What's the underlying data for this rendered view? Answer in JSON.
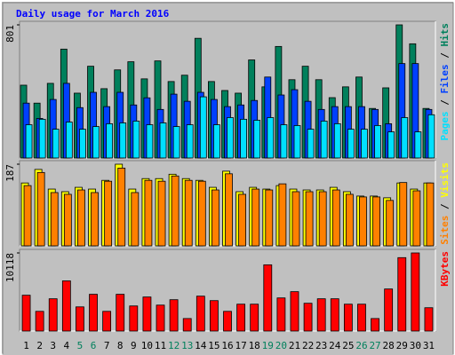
{
  "chart_data": {
    "type": "bar",
    "title": "Daily usage for March 2016",
    "legend_separator": "/",
    "categories": [
      "1",
      "2",
      "3",
      "4",
      "5",
      "6",
      "7",
      "8",
      "9",
      "10",
      "11",
      "12",
      "13",
      "14",
      "15",
      "16",
      "17",
      "18",
      "19",
      "20",
      "21",
      "22",
      "23",
      "24",
      "25",
      "26",
      "27",
      "28",
      "29",
      "30",
      "31"
    ],
    "category_colors": [
      "#000000",
      "#000000",
      "#000000",
      "#000000",
      "#00805c",
      "#00805c",
      "#000000",
      "#000000",
      "#000000",
      "#000000",
      "#000000",
      "#00805c",
      "#00805c",
      "#000000",
      "#000000",
      "#000000",
      "#000000",
      "#000000",
      "#00805c",
      "#00805c",
      "#000000",
      "#000000",
      "#000000",
      "#000000",
      "#000000",
      "#00805c",
      "#00805c",
      "#000000",
      "#000000",
      "#000000",
      "#000000"
    ],
    "panels": [
      {
        "ylim": [
          0,
          801
        ],
        "yticks": [
          801
        ],
        "series": [
          {
            "name": "Hits",
            "color": "#00805c",
            "values": [
              438,
              330,
              449,
              655,
              390,
              552,
              417,
              530,
              579,
              476,
              584,
              460,
              498,
              720,
              460,
              406,
              390,
              590,
              428,
              671,
              471,
              552,
              471,
              363,
              428,
              487,
              298,
              422,
              801,
              687,
              298
            ]
          },
          {
            "name": "Files",
            "color": "#0040ff",
            "values": [
              330,
              238,
              352,
              449,
              303,
              395,
              309,
              395,
              319,
              362,
              292,
              384,
              341,
              395,
              352,
              309,
              319,
              346,
              487,
              379,
              411,
              341,
              292,
              309,
              309,
              309,
              292,
              206,
              568,
              568,
              292
            ]
          },
          {
            "name": "Pages",
            "color": "#00e0ff",
            "values": [
              200,
              233,
              173,
              216,
              173,
              189,
              206,
              211,
              222,
              200,
              211,
              189,
              200,
              368,
              200,
              243,
              233,
              227,
              243,
              200,
              195,
              173,
              222,
              206,
              173,
              173,
              195,
              157,
              243,
              157,
              260
            ]
          }
        ]
      },
      {
        "ylim": [
          0,
          187
        ],
        "yticks": [
          187
        ],
        "series": [
          {
            "name": "Visits",
            "color": "#ffff00",
            "values": [
              144,
              175,
              130,
              124,
              134,
              130,
              150,
              187,
              130,
              154,
              154,
              164,
              154,
              150,
              134,
              171,
              124,
              134,
              130,
              138,
              130,
              128,
              128,
              134,
              124,
              114,
              114,
              110,
              144,
              130,
              144
            ]
          },
          {
            "name": "Sites",
            "color": "#ff8000",
            "values": [
              138,
              168,
              122,
              118,
              128,
              122,
              148,
              178,
              122,
              150,
              148,
              160,
              150,
              148,
              128,
              165,
              118,
              130,
              128,
              142,
              124,
              124,
              124,
              128,
              118,
              112,
              112,
              104,
              145,
              126,
              144
            ]
          }
        ]
      },
      {
        "ylim": [
          0,
          10118
        ],
        "yticks": [
          10118
        ],
        "series": [
          {
            "name": "KBytes",
            "color": "#ff0000",
            "values": [
              4640,
              2550,
              4180,
              6500,
              3130,
              4760,
              2550,
              4760,
              3250,
              4410,
              3360,
              4060,
              1620,
              4520,
              3940,
              2550,
              3480,
              3480,
              8580,
              4290,
              5100,
              3600,
              4180,
              4180,
              3480,
              3480,
              1620,
              5450,
              9510,
              10118,
              3020
            ]
          }
        ]
      }
    ]
  }
}
